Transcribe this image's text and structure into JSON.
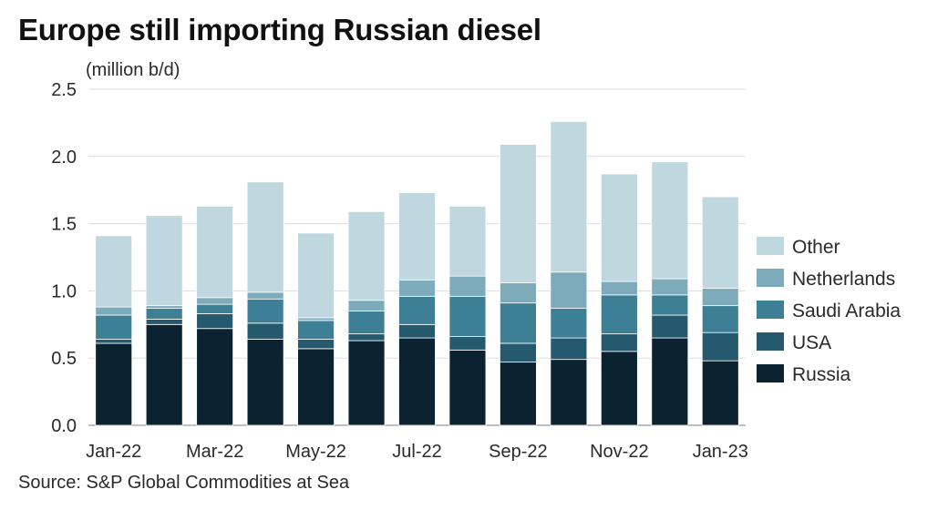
{
  "title": "Europe still importing Russian diesel",
  "unit_label": "(million b/d)",
  "source": "Source: S&P Global Commodities at Sea",
  "chart_data": {
    "type": "bar",
    "stacked": true,
    "title": "Europe still importing Russian diesel",
    "ylabel": "(million b/d)",
    "xlabel": "",
    "ylim": [
      0,
      2.5
    ],
    "yticks": [
      "0.0",
      "0.5",
      "1.0",
      "1.5",
      "2.0",
      "2.5"
    ],
    "grid": true,
    "legend_position": "right",
    "categories": [
      "Jan-22",
      "Feb-22",
      "Mar-22",
      "Apr-22",
      "May-22",
      "Jun-22",
      "Jul-22",
      "Aug-22",
      "Sep-22",
      "Oct-22",
      "Nov-22",
      "Dec-22",
      "Jan-23"
    ],
    "x_tick_labels": [
      "Jan-22",
      "",
      "Mar-22",
      "",
      "May-22",
      "",
      "Jul-22",
      "",
      "Sep-22",
      "",
      "Nov-22",
      "",
      "Jan-23"
    ],
    "series": [
      {
        "name": "Russia",
        "color": "#0b2330",
        "values": [
          0.61,
          0.75,
          0.72,
          0.64,
          0.57,
          0.63,
          0.65,
          0.56,
          0.47,
          0.49,
          0.55,
          0.65,
          0.48
        ]
      },
      {
        "name": "USA",
        "color": "#255a6e",
        "values": [
          0.03,
          0.04,
          0.11,
          0.12,
          0.07,
          0.05,
          0.1,
          0.1,
          0.14,
          0.16,
          0.13,
          0.17,
          0.21
        ]
      },
      {
        "name": "Saudi Arabia",
        "color": "#3d7f94",
        "values": [
          0.18,
          0.08,
          0.07,
          0.18,
          0.14,
          0.17,
          0.21,
          0.3,
          0.3,
          0.22,
          0.29,
          0.15,
          0.2
        ]
      },
      {
        "name": "Netherlands",
        "color": "#7eabbb",
        "values": [
          0.06,
          0.02,
          0.05,
          0.05,
          0.02,
          0.08,
          0.12,
          0.15,
          0.15,
          0.27,
          0.1,
          0.12,
          0.13
        ]
      },
      {
        "name": "Other",
        "color": "#bfd7df",
        "values": [
          0.53,
          0.67,
          0.68,
          0.82,
          0.63,
          0.66,
          0.65,
          0.52,
          1.03,
          1.12,
          0.8,
          0.87,
          0.68
        ]
      }
    ],
    "legend_order": [
      "Other",
      "Netherlands",
      "Saudi Arabia",
      "USA",
      "Russia"
    ]
  }
}
